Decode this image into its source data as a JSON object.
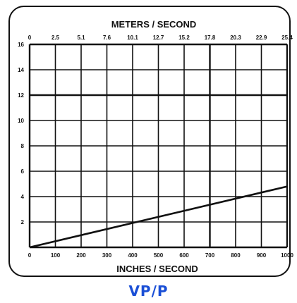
{
  "caption": "VP/P",
  "chart_data": {
    "type": "line",
    "xlabel_bottom": "INCHES / SECOND",
    "xlabel_top": "METERS / SECOND",
    "x_bottom_ticks": [
      "0",
      "100",
      "200",
      "300",
      "400",
      "500",
      "600",
      "700",
      "800",
      "900",
      "1000"
    ],
    "x_top_ticks": [
      "0",
      "2.5",
      "5.1",
      "7.6",
      "10.1",
      "12.7",
      "15.2",
      "17.8",
      "20.3",
      "22.9",
      "25.4"
    ],
    "y_ticks": [
      "2",
      "4",
      "6",
      "8",
      "10",
      "12",
      "14",
      "16"
    ],
    "xlim": [
      0,
      1000
    ],
    "ylim": [
      0,
      16
    ],
    "grid": true,
    "series": [
      {
        "x": [
          0,
          1000
        ],
        "y": [
          0,
          4.8
        ]
      }
    ]
  }
}
